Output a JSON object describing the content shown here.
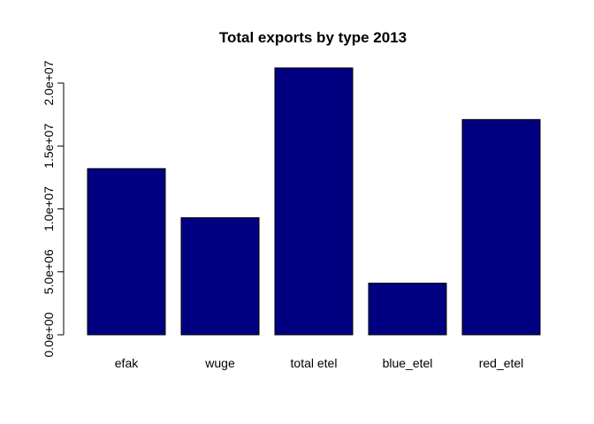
{
  "chart_data": {
    "type": "bar",
    "title": "Total exports by type 2013",
    "xlabel": "",
    "ylabel": "",
    "categories": [
      "efak",
      "wuge",
      "total etel",
      "blue_etel",
      "red_etel"
    ],
    "values": [
      13200000,
      9300000,
      21200000,
      4100000,
      17100000
    ],
    "ylim": [
      0,
      22000000
    ],
    "yticks": [
      0,
      5000000,
      10000000,
      15000000,
      20000000
    ],
    "ytick_labels": [
      "0.0e+00",
      "5.0e+06",
      "1.0e+07",
      "1.5e+07",
      "2.0e+07"
    ],
    "bar_color": "#000080",
    "bar_border": "#000000",
    "grid": false,
    "legend": "none"
  }
}
